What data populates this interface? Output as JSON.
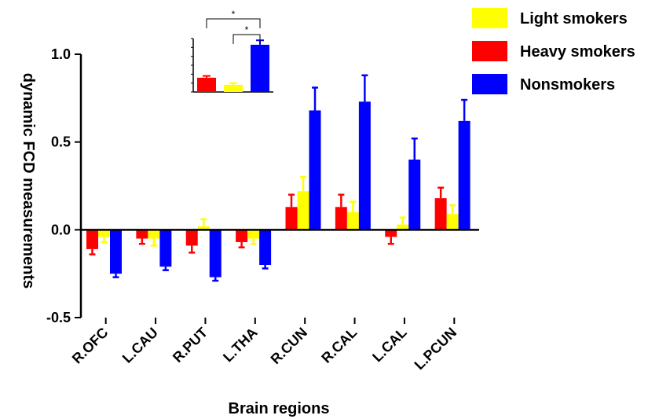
{
  "chart_data": [
    {
      "type": "bar",
      "xlabel": "Brain regions",
      "ylabel": "dynamic FCD measurements",
      "ylim": [
        -0.5,
        1.0
      ],
      "yticks": [
        "-0.5",
        "0.0",
        "0.5",
        "1.0"
      ],
      "categories": [
        "R.OFC",
        "L.CAU",
        "R.PUT",
        "L.THA",
        "R.CUN",
        "R.CAL",
        "L.CAL",
        "L.PCUN"
      ],
      "legend_position": "top-right",
      "series": [
        {
          "name": "Light smokers",
          "color": "#FFFF00",
          "values": [
            -0.04,
            -0.05,
            0.02,
            -0.05,
            0.22,
            0.1,
            0.03,
            0.09
          ],
          "errors": [
            0.03,
            0.04,
            0.04,
            0.03,
            0.08,
            0.06,
            0.04,
            0.05
          ]
        },
        {
          "name": "Heavy smokers",
          "color": "#FF0000",
          "values": [
            -0.11,
            -0.05,
            -0.09,
            -0.07,
            0.13,
            0.13,
            -0.04,
            0.18
          ],
          "errors": [
            0.03,
            0.03,
            0.04,
            0.03,
            0.07,
            0.07,
            0.04,
            0.06
          ]
        },
        {
          "name": "Nonsmokers",
          "color": "#0000FF",
          "values": [
            -0.25,
            -0.21,
            -0.27,
            -0.2,
            0.68,
            0.73,
            0.4,
            0.62
          ],
          "errors": [
            0.02,
            0.02,
            0.02,
            0.02,
            0.13,
            0.15,
            0.12,
            0.12
          ]
        }
      ]
    },
    {
      "type": "bar",
      "inset": true,
      "series": [
        {
          "name": "Heavy smokers",
          "color": "#FF0000",
          "value": 0.16,
          "error": 0.02
        },
        {
          "name": "Light smokers",
          "color": "#FFFF00",
          "value": 0.08,
          "error": 0.02
        },
        {
          "name": "Nonsmokers",
          "color": "#0000FF",
          "value": 0.53,
          "error": 0.05
        }
      ],
      "ylim": [
        0,
        0.6
      ],
      "significance": [
        {
          "from": "Heavy smokers",
          "to": "Nonsmokers",
          "label": "*"
        },
        {
          "from": "Light smokers",
          "to": "Nonsmokers",
          "label": "*"
        }
      ]
    }
  ]
}
